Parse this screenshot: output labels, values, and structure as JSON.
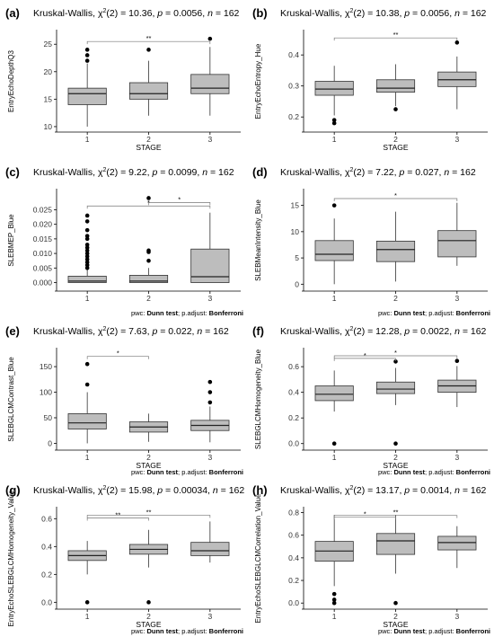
{
  "figure": {
    "pwc_note": "pwc:",
    "pwc_method_label": "Dunn test",
    "pwc_sep": "; p.adjust:",
    "pwc_adjust_label": "Bonferroni"
  },
  "chart_data": [
    {
      "panel": "(a)",
      "type": "box",
      "title": "Kruskal-Wallis, χ²(2) = 10.36, p = 0.0056, n = 162",
      "xlabel": "STAGE",
      "ylabel": "EntryEchoDepthQ3",
      "categories": [
        "1",
        "2",
        "3"
      ],
      "ylim": [
        9.5,
        27
      ],
      "yticks": [
        10,
        15,
        20,
        25
      ],
      "boxes": [
        {
          "lw": 10,
          "q1": 14,
          "med": 16,
          "q3": 17,
          "uw": 21.5,
          "outliers": [
            22,
            23,
            24
          ]
        },
        {
          "lw": 12,
          "q1": 15,
          "med": 16,
          "q3": 18,
          "uw": 22,
          "outliers": [
            24
          ]
        },
        {
          "lw": 12,
          "q1": 16,
          "med": 17,
          "q3": 19.5,
          "uw": 24.5,
          "outliers": [
            26
          ]
        }
      ],
      "brackets": [
        {
          "from": "1",
          "to": "3",
          "label": "**",
          "y": 25.5
        }
      ],
      "show_pwc": false
    },
    {
      "panel": "(b)",
      "type": "box",
      "title": "Kruskal-Wallis, χ²(2) = 10.38, p = 0.0056, n = 162",
      "xlabel": "STAGE",
      "ylabel": "EntryEchoEntropy_Hue",
      "categories": [
        "1",
        "2",
        "3"
      ],
      "ylim": [
        0.16,
        0.47
      ],
      "yticks": [
        0.2,
        0.3,
        0.4
      ],
      "boxes": [
        {
          "lw": 0.205,
          "q1": 0.27,
          "med": 0.29,
          "q3": 0.315,
          "uw": 0.365,
          "outliers": [
            0.19,
            0.18
          ]
        },
        {
          "lw": 0.235,
          "q1": 0.28,
          "med": 0.293,
          "q3": 0.32,
          "uw": 0.37,
          "outliers": [
            0.225
          ]
        },
        {
          "lw": 0.225,
          "q1": 0.298,
          "med": 0.32,
          "q3": 0.345,
          "uw": 0.395,
          "outliers": [
            0.44
          ]
        }
      ],
      "brackets": [
        {
          "from": "1",
          "to": "3",
          "label": "**",
          "y": 0.455
        }
      ],
      "show_pwc": false
    },
    {
      "panel": "(c)",
      "type": "box",
      "title": "Kruskal-Wallis, χ²(2) = 9.22, p = 0.0099, n = 162",
      "xlabel": "",
      "ylabel": "SLEBMEP_Blue",
      "categories": [
        "1",
        "2",
        "3"
      ],
      "ylim": [
        -0.002,
        0.031
      ],
      "yticks": [
        0.0,
        0.005,
        0.01,
        0.015,
        0.02,
        0.025
      ],
      "ytick_labels": [
        "0.000",
        "0.005",
        "0.010",
        "0.015",
        "0.020",
        "0.025"
      ],
      "boxes": [
        {
          "lw": 0,
          "q1": 0,
          "med": 0.0005,
          "q3": 0.0022,
          "uw": 0.0045,
          "outliers": [
            0.005,
            0.006,
            0.007,
            0.008,
            0.009,
            0.01,
            0.011,
            0.012,
            0.013,
            0.015,
            0.016,
            0.018,
            0.021,
            0.023
          ]
        },
        {
          "lw": 0,
          "q1": 0,
          "med": 0.0005,
          "q3": 0.0025,
          "uw": 0.005,
          "outliers": [
            0.0075,
            0.0105,
            0.011,
            0.029
          ]
        },
        {
          "lw": 0,
          "q1": 0,
          "med": 0.002,
          "q3": 0.0115,
          "uw": 0.024,
          "outliers": []
        }
      ],
      "brackets": [
        {
          "from": "2",
          "to": "3",
          "label": "*",
          "y": 0.0275
        },
        {
          "from": "1",
          "to": "3",
          "label": "*",
          "y": 0.0263
        }
      ],
      "show_pwc": true
    },
    {
      "panel": "(d)",
      "type": "box",
      "title": "Kruskal-Wallis, χ²(2) = 7.22, p = 0.027, n = 162",
      "xlabel": "",
      "ylabel": "SLEBMeanIntensity_Blue",
      "categories": [
        "1",
        "2",
        "3"
      ],
      "ylim": [
        -0.8,
        17.5
      ],
      "yticks": [
        0,
        5,
        10,
        15
      ],
      "boxes": [
        {
          "lw": 0,
          "q1": 4.5,
          "med": 5.7,
          "q3": 8.3,
          "uw": 12.5,
          "outliers": [
            15
          ]
        },
        {
          "lw": 0.5,
          "q1": 4.3,
          "med": 6.6,
          "q3": 8.2,
          "uw": 13.8,
          "outliers": []
        },
        {
          "lw": 3.5,
          "q1": 5.2,
          "med": 8.3,
          "q3": 10.2,
          "uw": 15.5,
          "outliers": []
        }
      ],
      "brackets": [
        {
          "from": "1",
          "to": "3",
          "label": "*",
          "y": 16.3
        }
      ],
      "show_pwc": true
    },
    {
      "panel": "(e)",
      "type": "box",
      "title": "Kruskal-Wallis, χ²(2) = 7.63, p = 0.022, n = 162",
      "xlabel": "STAGE",
      "ylabel": "SLEBGLCMContrast_Blue",
      "categories": [
        "1",
        "2",
        "3"
      ],
      "ylim": [
        -8,
        180
      ],
      "yticks": [
        0,
        50,
        100,
        150
      ],
      "boxes": [
        {
          "lw": 0,
          "q1": 28,
          "med": 40,
          "q3": 58,
          "uw": 100,
          "outliers": [
            115,
            155
          ]
        },
        {
          "lw": 3,
          "q1": 22,
          "med": 32,
          "q3": 42,
          "uw": 58,
          "outliers": []
        },
        {
          "lw": 2,
          "q1": 25,
          "med": 35,
          "q3": 45,
          "uw": 72,
          "outliers": [
            80,
            100,
            120
          ]
        }
      ],
      "brackets": [
        {
          "from": "1",
          "to": "2",
          "label": "*",
          "y": 170
        }
      ],
      "show_pwc": true
    },
    {
      "panel": "(f)",
      "type": "box",
      "title": "Kruskal-Wallis, χ²(2) = 12.28, p = 0.0022, n = 162",
      "xlabel": "STAGE",
      "ylabel": "SLEBGLCMHomogeneity_Blue",
      "categories": [
        "1",
        "2",
        "3"
      ],
      "ylim": [
        -0.03,
        0.72
      ],
      "yticks": [
        0.0,
        0.2,
        0.4,
        0.6
      ],
      "boxes": [
        {
          "lw": 0.25,
          "q1": 0.335,
          "med": 0.385,
          "q3": 0.45,
          "uw": 0.57,
          "outliers": [
            0
          ]
        },
        {
          "lw": 0.3,
          "q1": 0.39,
          "med": 0.425,
          "q3": 0.48,
          "uw": 0.59,
          "outliers": [
            0.64,
            0
          ]
        },
        {
          "lw": 0.285,
          "q1": 0.4,
          "med": 0.45,
          "q3": 0.495,
          "uw": 0.605,
          "outliers": [
            0.645
          ]
        }
      ],
      "brackets": [
        {
          "from": "1",
          "to": "3",
          "label": "*",
          "y": 0.685
        },
        {
          "from": "1",
          "to": "2",
          "label": "*",
          "y": 0.665
        }
      ],
      "show_pwc": true
    },
    {
      "panel": "(g)",
      "type": "box",
      "title": "Kruskal-Wallis, χ²(2) = 15.98, p = 0.00034, n = 162",
      "xlabel": "STAGE",
      "ylabel": "EntryEchoSLEBGLCMHomogeneity_Value",
      "categories": [
        "1",
        "2",
        "3"
      ],
      "ylim": [
        -0.03,
        0.66
      ],
      "yticks": [
        0.0,
        0.2,
        0.4,
        0.6
      ],
      "boxes": [
        {
          "lw": 0.2,
          "q1": 0.3,
          "med": 0.335,
          "q3": 0.37,
          "uw": 0.44,
          "outliers": [
            0
          ]
        },
        {
          "lw": 0.25,
          "q1": 0.345,
          "med": 0.38,
          "q3": 0.415,
          "uw": 0.52,
          "outliers": [
            0
          ]
        },
        {
          "lw": 0.285,
          "q1": 0.335,
          "med": 0.37,
          "q3": 0.43,
          "uw": 0.58,
          "outliers": []
        }
      ],
      "brackets": [
        {
          "from": "1",
          "to": "3",
          "label": "**",
          "y": 0.625
        },
        {
          "from": "1",
          "to": "2",
          "label": "**",
          "y": 0.605
        }
      ],
      "show_pwc": true
    },
    {
      "panel": "(h)",
      "type": "box",
      "title": "Kruskal-Wallis, χ²(2) = 13.17, p = 0.0014, n = 162",
      "xlabel": "STAGE",
      "ylabel": "EntryEchoSLEBGLCMCorrelation_Value",
      "categories": [
        "1",
        "2",
        "3"
      ],
      "ylim": [
        -0.03,
        0.82
      ],
      "yticks": [
        0.0,
        0.2,
        0.4,
        0.6,
        0.8
      ],
      "boxes": [
        {
          "lw": 0.15,
          "q1": 0.37,
          "med": 0.46,
          "q3": 0.545,
          "uw": 0.78,
          "outliers": [
            0.08,
            0.03,
            0
          ]
        },
        {
          "lw": 0.26,
          "q1": 0.43,
          "med": 0.55,
          "q3": 0.615,
          "uw": 0.78,
          "outliers": [
            0
          ]
        },
        {
          "lw": 0.31,
          "q1": 0.47,
          "med": 0.535,
          "q3": 0.59,
          "uw": 0.68,
          "outliers": []
        }
      ],
      "brackets": [
        {
          "from": "1",
          "to": "3",
          "label": "**",
          "y": 0.775
        },
        {
          "from": "1",
          "to": "2",
          "label": "*",
          "y": 0.762
        }
      ],
      "show_pwc": true
    }
  ]
}
